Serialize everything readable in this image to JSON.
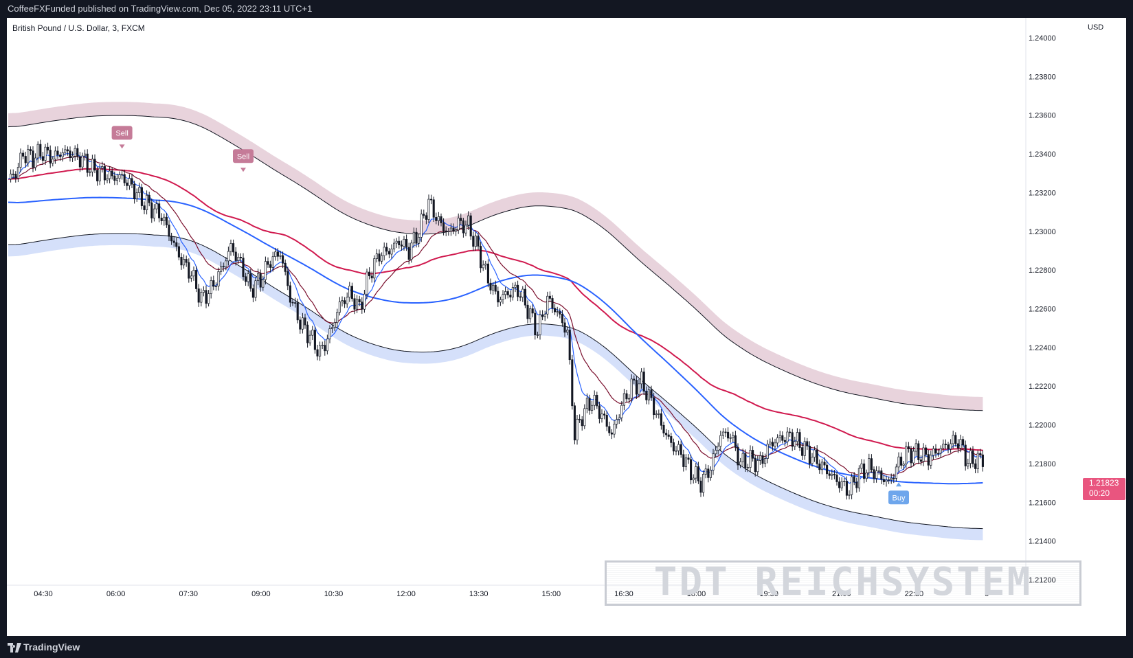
{
  "header": {
    "published": "CoffeeFXFunded published on TradingView.com, Dec 05, 2022 23:11 UTC+1"
  },
  "footer": {
    "brand": "TradingView"
  },
  "watermark": "TDT REICHSYSTEM",
  "colors": {
    "up_candle": "#ffffff",
    "down_candle": "#131722",
    "wick": "#131722",
    "ema_fast": "#2962ff",
    "ema_slow": "#d0194e",
    "ema_mid": "#7a0e2c",
    "upper_band": "#e8d3dc",
    "lower_band": "#d5e0fa",
    "envelope_line": "#131722",
    "sell": "#c57b98",
    "buy": "#6ea6ec",
    "price_tag": "#e9557f"
  },
  "chart_data": {
    "type": "candlestick",
    "symbol": "British Pound / U.S. Dollar, 3, FXCM",
    "currency": "USD",
    "y_ticks": [
      "1.24000",
      "1.23800",
      "1.23600",
      "1.23400",
      "1.23200",
      "1.23000",
      "1.22800",
      "1.22600",
      "1.22400",
      "1.22200",
      "1.22000",
      "1.21800",
      "1.21600",
      "1.21400",
      "1.21200"
    ],
    "ylim": [
      1.212,
      1.24
    ],
    "x_ticks": [
      "04:30",
      "06:00",
      "07:30",
      "09:00",
      "10:30",
      "12:00",
      "13:30",
      "15:00",
      "16:30",
      "18:00",
      "19:30",
      "21:00",
      "22:30",
      "6"
    ],
    "last_price": "1.21823",
    "countdown": "00:20",
    "close_path": [
      [
        0,
        1.2327
      ],
      [
        3,
        1.233
      ],
      [
        6,
        1.234
      ],
      [
        10,
        1.2338
      ],
      [
        14,
        1.2341
      ],
      [
        18,
        1.2338
      ],
      [
        22,
        1.2341
      ],
      [
        26,
        1.234
      ],
      [
        30,
        1.2337
      ],
      [
        34,
        1.2332
      ],
      [
        38,
        1.233
      ],
      [
        42,
        1.2328
      ],
      [
        46,
        1.2328
      ],
      [
        50,
        1.2323
      ],
      [
        54,
        1.2316
      ],
      [
        58,
        1.2312
      ],
      [
        62,
        1.2308
      ],
      [
        66,
        1.2296
      ],
      [
        70,
        1.2285
      ],
      [
        74,
        1.2278
      ],
      [
        78,
        1.2265
      ],
      [
        82,
        1.227
      ],
      [
        86,
        1.228
      ],
      [
        90,
        1.2292
      ],
      [
        94,
        1.2283
      ],
      [
        98,
        1.227
      ],
      [
        102,
        1.2275
      ],
      [
        106,
        1.2285
      ],
      [
        110,
        1.2289
      ],
      [
        114,
        1.2266
      ],
      [
        118,
        1.2253
      ],
      [
        122,
        1.2246
      ],
      [
        126,
        1.2237
      ],
      [
        130,
        1.2247
      ],
      [
        134,
        1.2262
      ],
      [
        138,
        1.2268
      ],
      [
        142,
        1.226
      ],
      [
        146,
        1.2278
      ],
      [
        150,
        1.2288
      ],
      [
        154,
        1.229
      ],
      [
        158,
        1.2295
      ],
      [
        162,
        1.229
      ],
      [
        166,
        1.23
      ],
      [
        170,
        1.2315
      ],
      [
        174,
        1.2305
      ],
      [
        178,
        1.2299
      ],
      [
        182,
        1.2304
      ],
      [
        186,
        1.2303
      ],
      [
        190,
        1.229
      ],
      [
        194,
        1.2275
      ],
      [
        198,
        1.2265
      ],
      [
        202,
        1.2268
      ],
      [
        206,
        1.227
      ],
      [
        210,
        1.226
      ],
      [
        214,
        1.2248
      ],
      [
        218,
        1.2265
      ],
      [
        222,
        1.2258
      ],
      [
        226,
        1.2248
      ],
      [
        229,
        1.2195
      ],
      [
        232,
        1.2205
      ],
      [
        236,
        1.2213
      ],
      [
        240,
        1.2205
      ],
      [
        244,
        1.2195
      ],
      [
        248,
        1.221
      ],
      [
        252,
        1.222
      ],
      [
        256,
        1.2222
      ],
      [
        260,
        1.2212
      ],
      [
        264,
        1.22
      ],
      [
        268,
        1.219
      ],
      [
        272,
        1.2185
      ],
      [
        276,
        1.2176
      ],
      [
        280,
        1.217
      ],
      [
        284,
        1.2178
      ],
      [
        288,
        1.2195
      ],
      [
        292,
        1.2195
      ],
      [
        296,
        1.218
      ],
      [
        300,
        1.2182
      ],
      [
        304,
        1.218
      ],
      [
        308,
        1.219
      ],
      [
        312,
        1.2193
      ],
      [
        316,
        1.2194
      ],
      [
        320,
        1.219
      ],
      [
        324,
        1.2185
      ],
      [
        328,
        1.218
      ],
      [
        332,
        1.2175
      ],
      [
        336,
        1.217
      ],
      [
        340,
        1.2166
      ],
      [
        344,
        1.2175
      ],
      [
        348,
        1.2178
      ],
      [
        352,
        1.2174
      ],
      [
        356,
        1.217
      ],
      [
        360,
        1.218
      ],
      [
        364,
        1.2186
      ],
      [
        368,
        1.2185
      ],
      [
        372,
        1.2183
      ],
      [
        376,
        1.2187
      ],
      [
        380,
        1.219
      ],
      [
        384,
        1.2192
      ],
      [
        388,
        1.2181
      ],
      [
        392,
        1.2182
      ]
    ],
    "signals": [
      {
        "type": "sell",
        "label": "Sell",
        "bar": 46,
        "price": 1.2342
      },
      {
        "type": "sell",
        "label": "Sell",
        "bar": 95,
        "price": 1.233
      },
      {
        "type": "buy",
        "label": "Buy",
        "bar": 360,
        "price": 1.2171
      }
    ]
  }
}
